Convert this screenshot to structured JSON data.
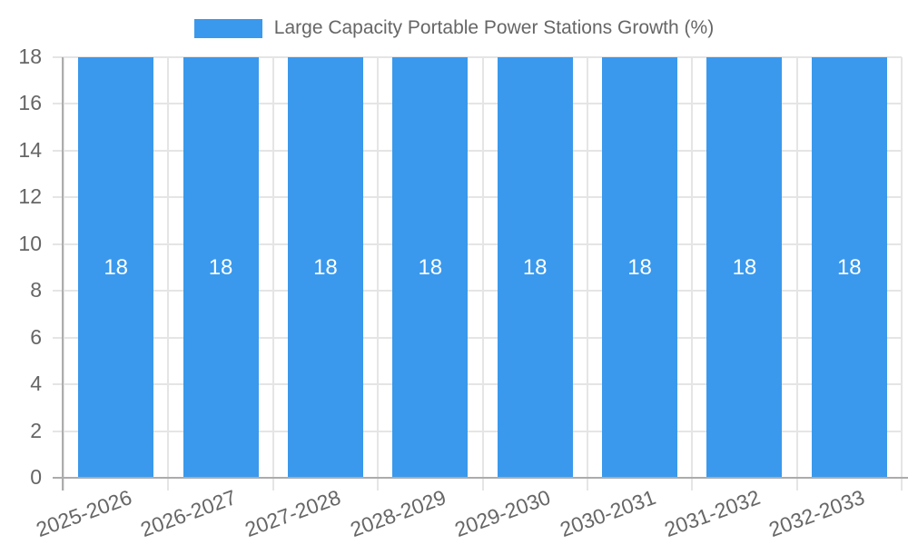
{
  "chart_data": {
    "type": "bar",
    "title": "Large Capacity Portable Power Stations Growth (%)",
    "categories": [
      "2025-2026",
      "2026-2027",
      "2027-2028",
      "2028-2029",
      "2029-2030",
      "2030-2031",
      "2031-2032",
      "2032-2033"
    ],
    "values": [
      18,
      18,
      18,
      18,
      18,
      18,
      18,
      18
    ],
    "bar_value_labels": [
      "18",
      "18",
      "18",
      "18",
      "18",
      "18",
      "18",
      "18"
    ],
    "xlabel": "",
    "ylabel": "",
    "ylim": [
      0,
      18
    ],
    "yticks": [
      0,
      2,
      4,
      6,
      8,
      10,
      12,
      14,
      16,
      18
    ],
    "grid": true,
    "legend_position": "top",
    "x_tick_rotation_deg": -20,
    "colors": {
      "bar": "#3A99EC",
      "grid": "#E5E5E5",
      "axis": "#ACACAC",
      "tick_label": "#666666",
      "legend_text": "#666666",
      "bar_label": "#FFFFFF",
      "background": "#FFFFFF"
    }
  }
}
